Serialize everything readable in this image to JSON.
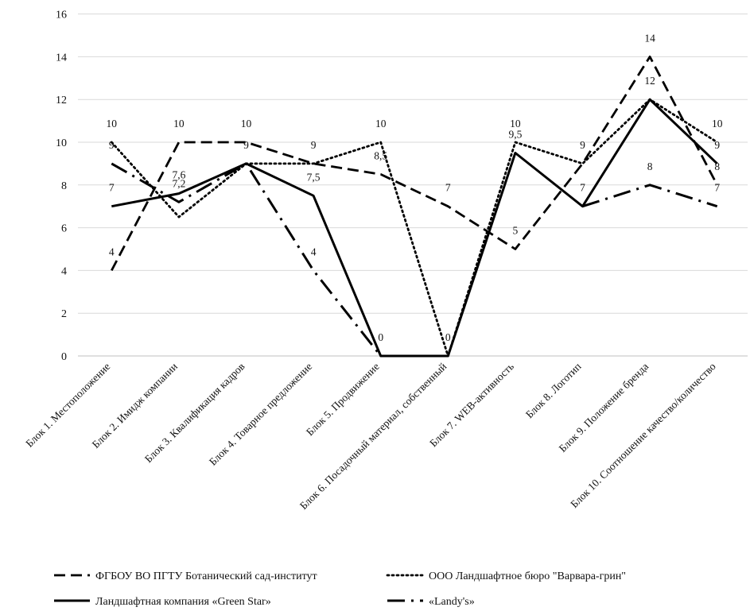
{
  "chart_data": {
    "type": "line",
    "title": "",
    "xlabel": "",
    "ylabel": "",
    "ylim": [
      0,
      16
    ],
    "yticks": [
      "0",
      "2",
      "4",
      "6",
      "8",
      "10",
      "12",
      "14",
      "16"
    ],
    "grid": "horizontal",
    "legend_position": "bottom",
    "categories": [
      "Блок 1. Местоположение",
      "Блок 2. Имидж компании",
      "Блок 3. Квалификация кадров",
      "Блок 4. Товарное предложение",
      "Блок 5. Продвижение",
      "Блок 6. Посадочный материал, собственный",
      "Блок 7. WEB-активность",
      "Блок 8. Логотип",
      "Блок 9. Положение бренда",
      "Блок 10. Соотношение качество/количество"
    ],
    "series": [
      {
        "name": "ФГБОУ ВО ПГТУ Ботанический сад-институт",
        "style": "dashed",
        "values": [
          4,
          10,
          10,
          9,
          8.5,
          7,
          5,
          9,
          14,
          8
        ],
        "labels": [
          "4",
          "10",
          "10",
          "9",
          "8,5",
          "7",
          "5",
          "9",
          "14",
          "8"
        ]
      },
      {
        "name": "ООО Ландшафтное бюро \"Варвара-грин\"",
        "style": "dotted",
        "values": [
          10,
          6.5,
          9,
          9,
          10,
          0,
          10,
          9,
          12,
          10
        ],
        "labels": [
          "10",
          "",
          "",
          "",
          "10",
          "",
          "10",
          "",
          "",
          "10"
        ]
      },
      {
        "name": "Ландшафтная компания «Green Star»",
        "style": "solid",
        "values": [
          7,
          7.6,
          9,
          7.5,
          0,
          0,
          9.5,
          7,
          12,
          9
        ],
        "labels": [
          "7",
          "7,6",
          "9",
          "7,5",
          "0",
          "0",
          "9,5",
          "7",
          "12",
          "9"
        ]
      },
      {
        "name": "«Landy's»",
        "style": "dashdot",
        "values": [
          9,
          7.2,
          9,
          4,
          0,
          null,
          null,
          7,
          8,
          7
        ],
        "labels": [
          "9",
          "7,2",
          "",
          "4",
          "",
          "",
          "",
          "",
          "8",
          "7"
        ]
      }
    ]
  }
}
